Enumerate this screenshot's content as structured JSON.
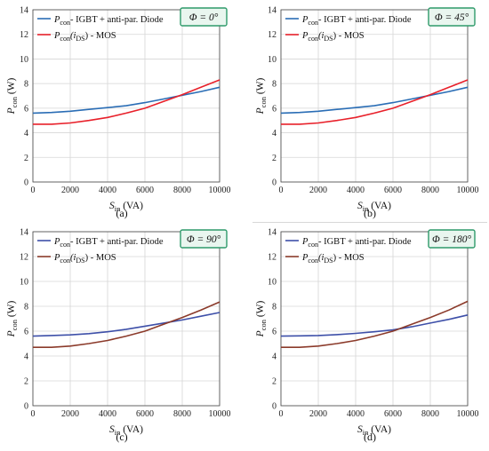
{
  "chart_data": [
    {
      "type": "line",
      "panel_label": "(a)",
      "phase_label": "Φ = 0°",
      "xlabel": {
        "main": "S",
        "sub": "in",
        "unit": " (VA)"
      },
      "ylabel": {
        "main": "P",
        "sub": "con",
        "unit": " (W)"
      },
      "xlim": [
        0,
        10000
      ],
      "ylim": [
        0,
        14
      ],
      "x_ticks": [
        0,
        2000,
        4000,
        6000,
        8000,
        10000
      ],
      "y_ticks": [
        0,
        2,
        4,
        6,
        8,
        10,
        12,
        14
      ],
      "grid": true,
      "legend_position": "top-left",
      "series": [
        {
          "name_main": "P",
          "name_sub": "con",
          "name_rest": "- IGBT + anti-par. Diode",
          "color": "#2a6db5",
          "x": [
            0,
            1000,
            2000,
            3000,
            4000,
            5000,
            6000,
            7000,
            8000,
            9000,
            10000
          ],
          "y": [
            5.6,
            5.65,
            5.75,
            5.9,
            6.05,
            6.2,
            6.45,
            6.75,
            7.05,
            7.35,
            7.7
          ]
        },
        {
          "name_main": "P",
          "name_sub": "con",
          "name_paren": "(i",
          "name_paren_sub": "DS",
          "name_rest": ") - MOS",
          "color": "#e8202a",
          "x": [
            0,
            1000,
            2000,
            3000,
            4000,
            5000,
            6000,
            7000,
            8000,
            9000,
            10000
          ],
          "y": [
            4.7,
            4.7,
            4.8,
            5.0,
            5.25,
            5.6,
            6.0,
            6.55,
            7.1,
            7.7,
            8.3
          ]
        }
      ]
    },
    {
      "type": "line",
      "panel_label": "(b)",
      "phase_label": "Φ = 45°",
      "xlabel": {
        "main": "S",
        "sub": "in",
        "unit": " (VA)"
      },
      "ylabel": {
        "main": "P",
        "sub": "con",
        "unit": " (W)"
      },
      "xlim": [
        0,
        10000
      ],
      "ylim": [
        0,
        14
      ],
      "x_ticks": [
        0,
        2000,
        4000,
        6000,
        8000,
        10000
      ],
      "y_ticks": [
        0,
        2,
        4,
        6,
        8,
        10,
        12,
        14
      ],
      "grid": true,
      "legend_position": "top-left",
      "series": [
        {
          "name_main": "P",
          "name_sub": "con",
          "name_rest": "- IGBT + anti-par. Diode",
          "color": "#2a6db5",
          "x": [
            0,
            1000,
            2000,
            3000,
            4000,
            5000,
            6000,
            7000,
            8000,
            9000,
            10000
          ],
          "y": [
            5.6,
            5.65,
            5.75,
            5.9,
            6.05,
            6.2,
            6.45,
            6.75,
            7.05,
            7.35,
            7.7
          ]
        },
        {
          "name_main": "P",
          "name_sub": "con",
          "name_paren": "(i",
          "name_paren_sub": "DS",
          "name_rest": ") - MOS",
          "color": "#e8202a",
          "x": [
            0,
            1000,
            2000,
            3000,
            4000,
            5000,
            6000,
            7000,
            8000,
            9000,
            10000
          ],
          "y": [
            4.7,
            4.7,
            4.8,
            5.0,
            5.25,
            5.6,
            6.0,
            6.55,
            7.1,
            7.7,
            8.3
          ]
        }
      ]
    },
    {
      "type": "line",
      "panel_label": "(c)",
      "phase_label": "Φ = 90°",
      "xlabel": {
        "main": "S",
        "sub": "in",
        "unit": " (VA)"
      },
      "ylabel": {
        "main": "P",
        "sub": "con",
        "unit": " (W)"
      },
      "xlim": [
        0,
        10000
      ],
      "ylim": [
        0,
        14
      ],
      "x_ticks": [
        0,
        2000,
        4000,
        6000,
        8000,
        10000
      ],
      "y_ticks": [
        0,
        2,
        4,
        6,
        8,
        10,
        12,
        14
      ],
      "grid": true,
      "legend_position": "top-left",
      "series": [
        {
          "name_main": "P",
          "name_sub": "con",
          "name_rest": "- IGBT + anti-par. Diode",
          "color": "#3d4fa8",
          "x": [
            0,
            1000,
            2000,
            3000,
            4000,
            5000,
            6000,
            7000,
            8000,
            9000,
            10000
          ],
          "y": [
            5.6,
            5.65,
            5.7,
            5.8,
            5.95,
            6.15,
            6.4,
            6.65,
            6.9,
            7.2,
            7.5
          ]
        },
        {
          "name_main": "P",
          "name_sub": "con",
          "name_paren": "(i",
          "name_paren_sub": "DS",
          "name_rest": ") - MOS",
          "color": "#8b3a2a",
          "x": [
            0,
            1000,
            2000,
            3000,
            4000,
            5000,
            6000,
            7000,
            8000,
            9000,
            10000
          ],
          "y": [
            4.7,
            4.7,
            4.8,
            5.0,
            5.25,
            5.6,
            6.0,
            6.55,
            7.1,
            7.7,
            8.35
          ]
        }
      ]
    },
    {
      "type": "line",
      "panel_label": "(d)",
      "phase_label": "Φ = 180°",
      "xlabel": {
        "main": "S",
        "sub": "in",
        "unit": " (VA)"
      },
      "ylabel": {
        "main": "P",
        "sub": "con",
        "unit": " (W)"
      },
      "xlim": [
        0,
        10000
      ],
      "ylim": [
        0,
        14
      ],
      "x_ticks": [
        0,
        2000,
        4000,
        6000,
        8000,
        10000
      ],
      "y_ticks": [
        0,
        2,
        4,
        6,
        8,
        10,
        12,
        14
      ],
      "grid": true,
      "legend_position": "top-left",
      "series": [
        {
          "name_main": "P",
          "name_sub": "con",
          "name_rest": "- IGBT + anti-par. Diode",
          "color": "#3d4fa8",
          "x": [
            0,
            1000,
            2000,
            3000,
            4000,
            5000,
            6000,
            7000,
            8000,
            9000,
            10000
          ],
          "y": [
            5.6,
            5.62,
            5.65,
            5.72,
            5.82,
            5.95,
            6.1,
            6.35,
            6.65,
            6.95,
            7.3
          ]
        },
        {
          "name_main": "P",
          "name_sub": "con",
          "name_paren": "(i",
          "name_paren_sub": "DS",
          "name_rest": ") - MOS",
          "color": "#8b3a2a",
          "x": [
            0,
            1000,
            2000,
            3000,
            4000,
            5000,
            6000,
            7000,
            8000,
            9000,
            10000
          ],
          "y": [
            4.7,
            4.7,
            4.8,
            5.0,
            5.25,
            5.6,
            6.0,
            6.55,
            7.1,
            7.7,
            8.4
          ]
        }
      ]
    }
  ],
  "colors": {
    "phase_box_border": "#2e9a6a",
    "phase_box_fill": "#e9f6ef",
    "grid": "#d6d6d6",
    "axis": "#444444"
  }
}
